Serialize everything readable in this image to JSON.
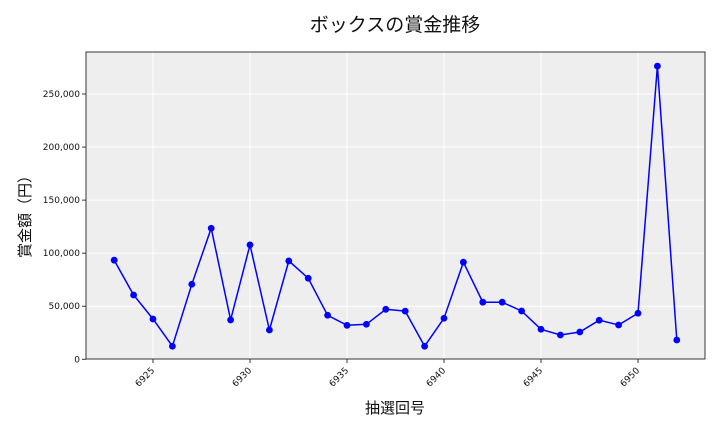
{
  "chart_data": {
    "type": "line",
    "title": "ボックスの賞金推移",
    "xlabel": "抽選回号",
    "ylabel": "賞金額（円）",
    "x": [
      6923,
      6924,
      6925,
      6926,
      6927,
      6928,
      6929,
      6930,
      6931,
      6932,
      6933,
      6934,
      6935,
      6936,
      6937,
      6938,
      6939,
      6940,
      6941,
      6942,
      6943,
      6944,
      6945,
      6946,
      6947,
      6948,
      6949,
      6950,
      6951,
      6952
    ],
    "values": [
      93400,
      60600,
      38000,
      12300,
      70700,
      123500,
      37100,
      107800,
      27600,
      92700,
      76400,
      41500,
      32000,
      33000,
      47100,
      45400,
      12300,
      38700,
      91500,
      53800,
      53800,
      45500,
      28300,
      22900,
      25700,
      36800,
      32300,
      43400,
      276300,
      18200
    ],
    "xticks": [
      6925,
      6930,
      6935,
      6940,
      6945,
      6950
    ],
    "yticks": [
      0,
      50000,
      100000,
      150000,
      200000,
      250000
    ],
    "ytick_labels": [
      "0",
      "50,000",
      "100,000",
      "150,000",
      "200,000",
      "250,000"
    ],
    "xlim": [
      6921.5,
      6953.3
    ],
    "ylim": [
      -2000,
      290000
    ],
    "grid": true,
    "line_color": "#0000ff",
    "marker_color": "#0000ff",
    "plot_bg": "#eeeeee",
    "legend": null
  }
}
